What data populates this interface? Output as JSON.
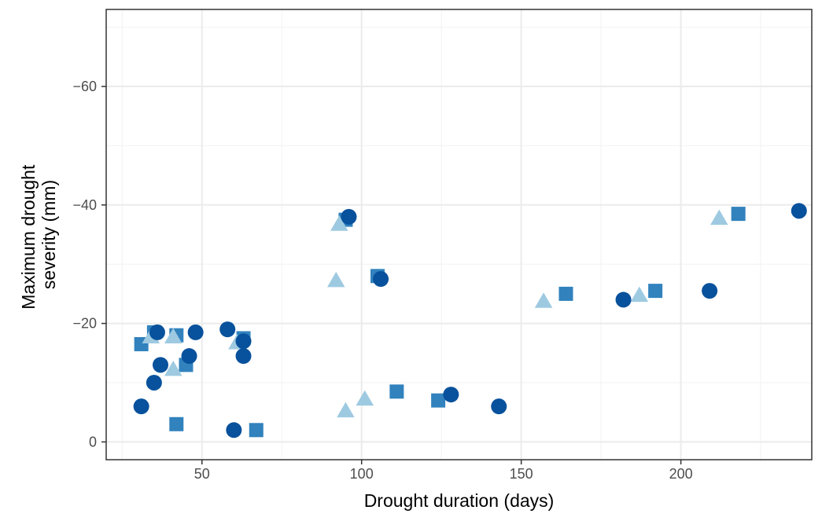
{
  "chart_data": {
    "type": "scatter",
    "title": "",
    "xlabel": "Drought duration (days)",
    "ylabel_lines": [
      "Maximum drought",
      "severity (mm)"
    ],
    "xlim": [
      20,
      241
    ],
    "ylim": [
      3,
      -73
    ],
    "y_reversed": true,
    "grid": true,
    "legend": "none",
    "x_ticks": [
      {
        "value": 50,
        "label": "50"
      },
      {
        "value": 100,
        "label": "100"
      },
      {
        "value": 150,
        "label": "150"
      },
      {
        "value": 200,
        "label": "200"
      }
    ],
    "y_ticks": [
      {
        "value": 0,
        "label": "0"
      },
      {
        "value": -20,
        "label": "−20"
      },
      {
        "value": -40,
        "label": "−40"
      },
      {
        "value": -60,
        "label": "−60"
      }
    ],
    "series": [
      {
        "shape": "square",
        "color": "#3182bd",
        "points": [
          [
            31,
            -16.5
          ],
          [
            35,
            -18.5
          ],
          [
            42,
            -18
          ],
          [
            45,
            -13
          ],
          [
            63,
            -17.5
          ],
          [
            42,
            -3
          ],
          [
            67,
            -2
          ],
          [
            95,
            -37.5
          ],
          [
            105,
            -28
          ],
          [
            111,
            -8.5
          ],
          [
            124,
            -7
          ],
          [
            164,
            -25
          ],
          [
            192,
            -25.5
          ],
          [
            218,
            -38.5
          ]
        ]
      },
      {
        "shape": "triangle",
        "color": "#9ecae1",
        "points": [
          [
            34,
            -17.5
          ],
          [
            41,
            -17.5
          ],
          [
            41,
            -12
          ],
          [
            61,
            -16.5
          ],
          [
            92,
            -27
          ],
          [
            93,
            -36.5
          ],
          [
            95,
            -5
          ],
          [
            101,
            -7
          ],
          [
            157,
            -23.5
          ],
          [
            187,
            -24.5
          ],
          [
            212,
            -37.5
          ]
        ]
      },
      {
        "shape": "circle",
        "color": "#08519c",
        "points": [
          [
            31,
            -6
          ],
          [
            35,
            -10
          ],
          [
            36,
            -18.5
          ],
          [
            37,
            -13
          ],
          [
            46,
            -14.5
          ],
          [
            48,
            -18.5
          ],
          [
            58,
            -19
          ],
          [
            60,
            -2
          ],
          [
            63,
            -17
          ],
          [
            63,
            -14.5
          ],
          [
            96,
            -38
          ],
          [
            106,
            -27.5
          ],
          [
            128,
            -8
          ],
          [
            143,
            -6
          ],
          [
            182,
            -24
          ],
          [
            209,
            -25.5
          ],
          [
            237,
            -39
          ]
        ]
      }
    ]
  }
}
